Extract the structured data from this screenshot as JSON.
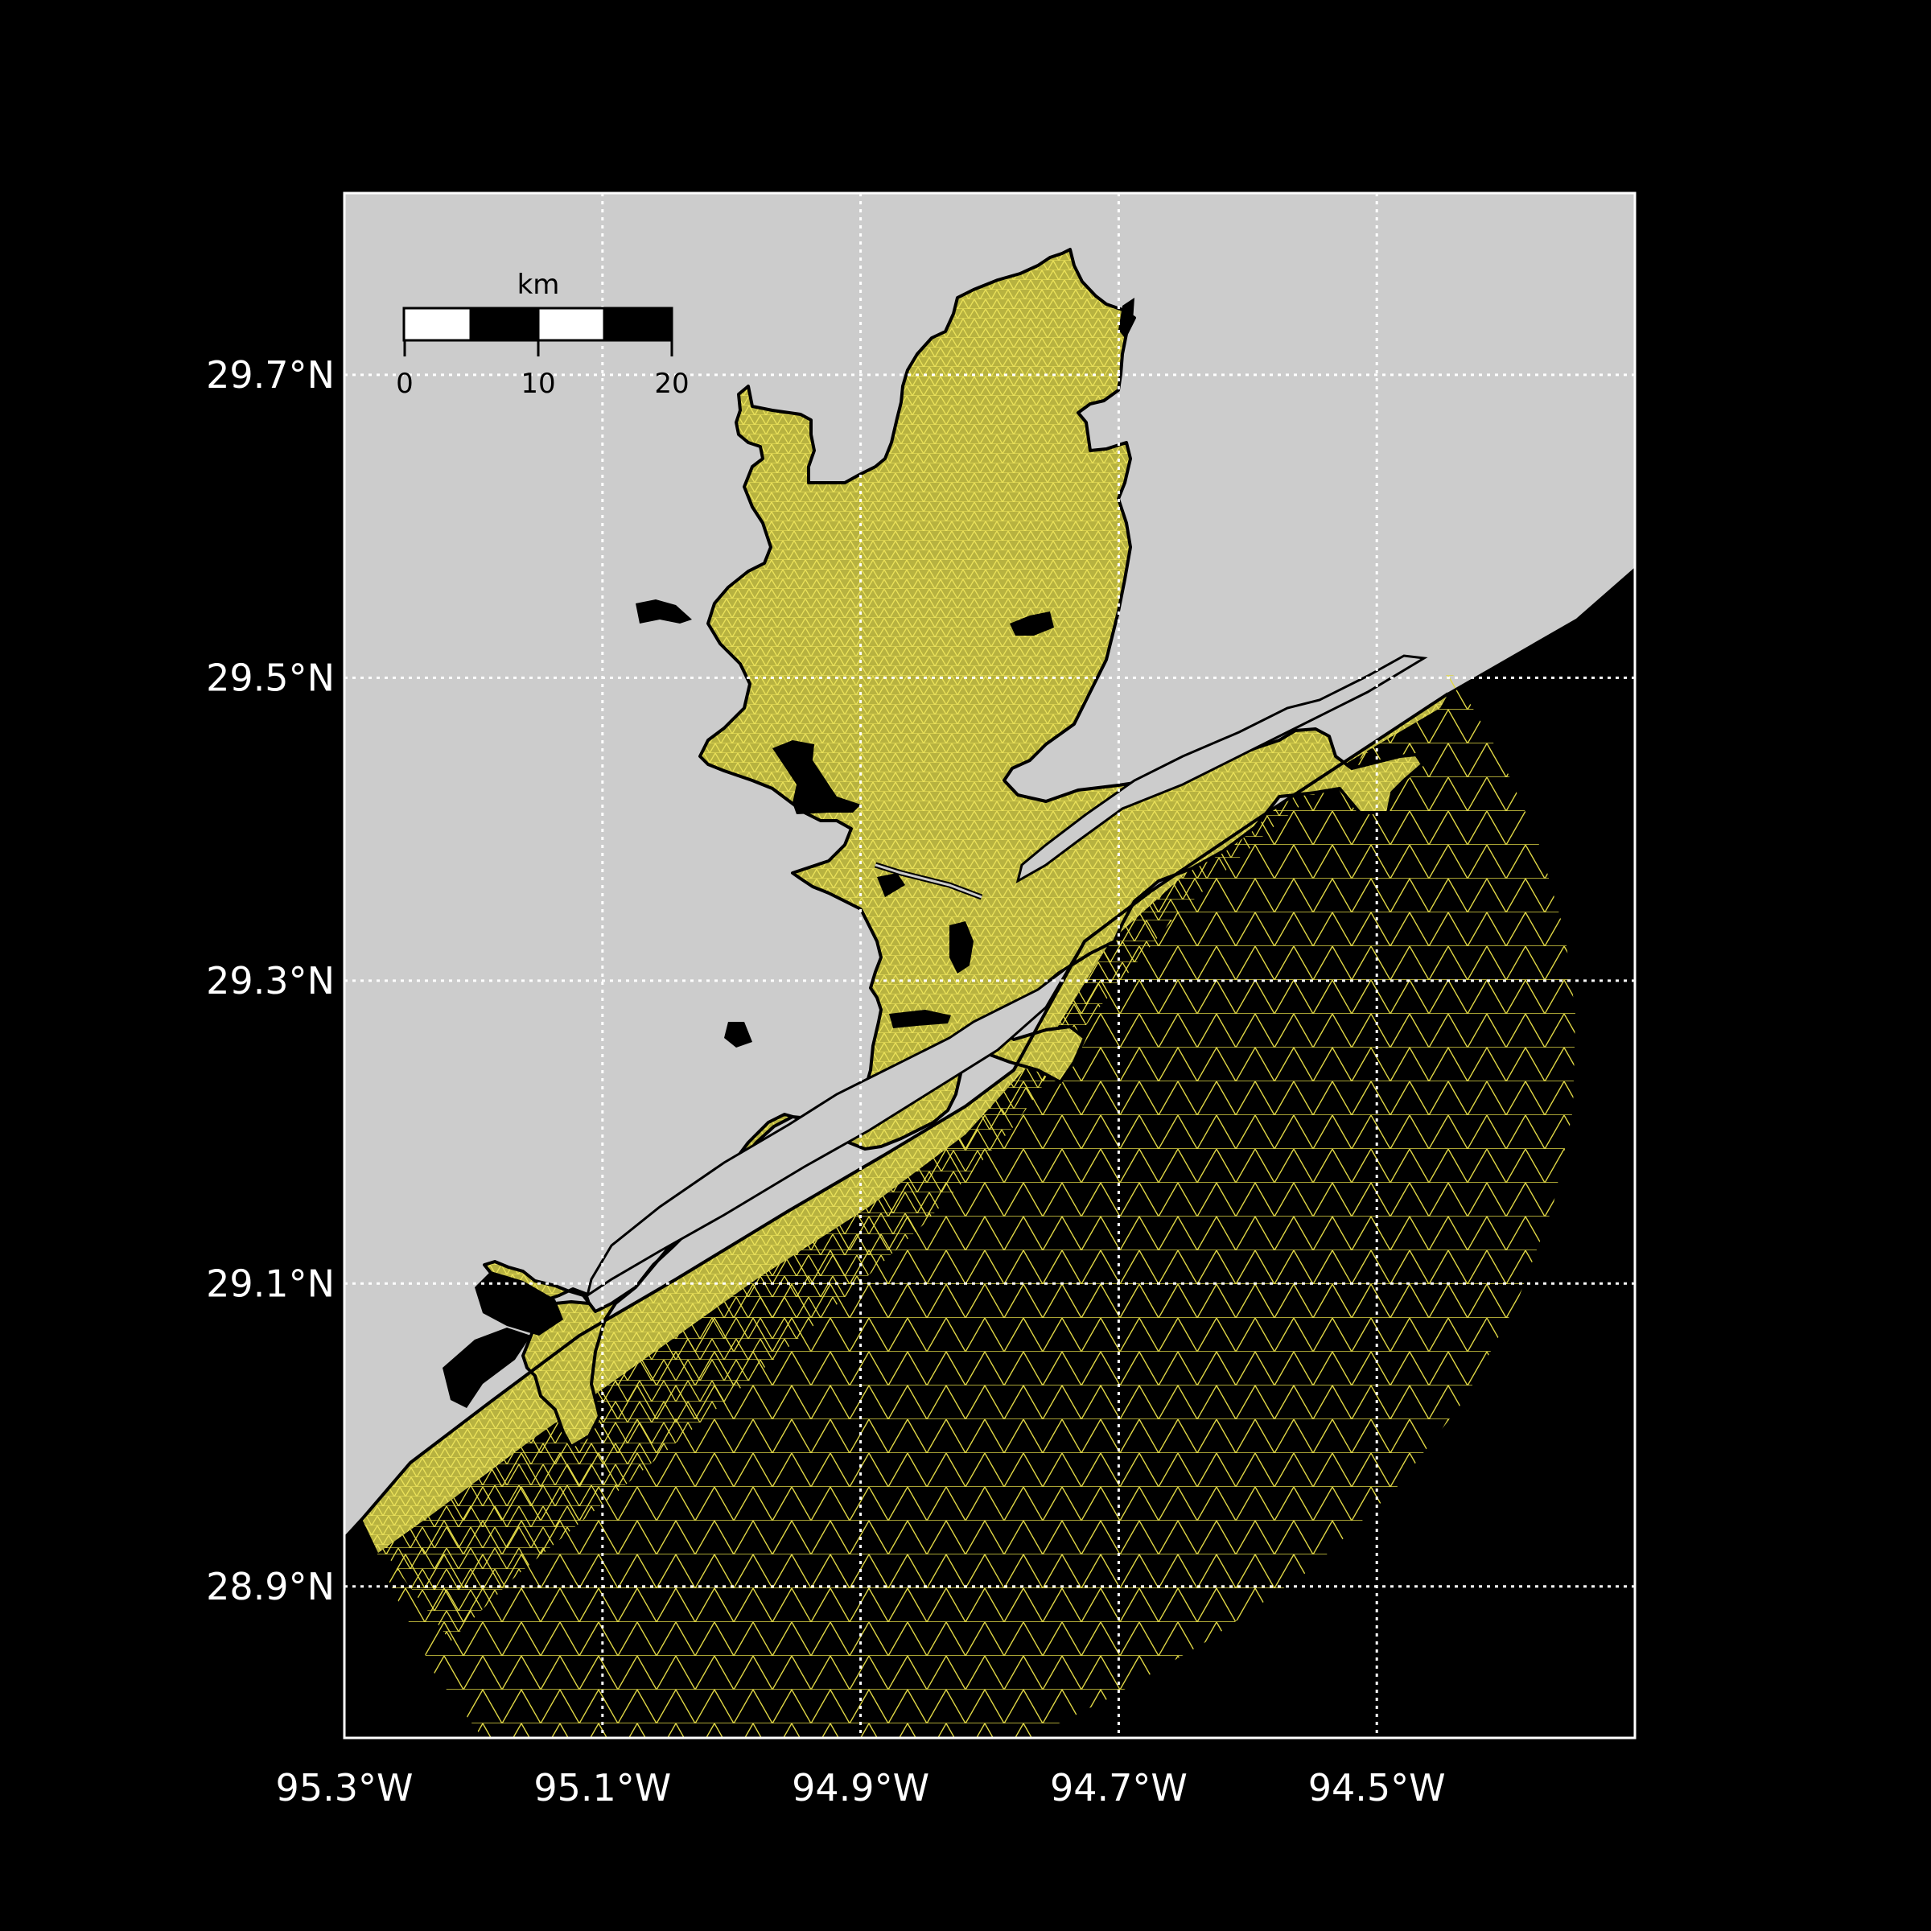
{
  "map": {
    "lon_range": [
      -95.3,
      -94.3
    ],
    "lat_range": [
      28.8,
      29.82
    ],
    "latitude_ticks": [
      {
        "value": 29.7,
        "label": "29.7°N"
      },
      {
        "value": 29.5,
        "label": "29.5°N"
      },
      {
        "value": 29.3,
        "label": "29.3°N"
      },
      {
        "value": 29.1,
        "label": "29.1°N"
      },
      {
        "value": 28.9,
        "label": "28.9°N"
      }
    ],
    "longitude_ticks": [
      {
        "value": -95.3,
        "label": "95.3°W"
      },
      {
        "value": -95.1,
        "label": "95.1°W"
      },
      {
        "value": -94.9,
        "label": "94.9°W"
      },
      {
        "value": -94.7,
        "label": "94.7°W"
      },
      {
        "value": -94.5,
        "label": "94.5°W"
      }
    ],
    "scale_bar": {
      "unit_label": "km",
      "tick_labels": [
        "0",
        "10",
        "20"
      ]
    },
    "colors": {
      "land": "#cccccc",
      "water_mesh_fill": "#b7b240",
      "mesh_lines": "#e8e04a",
      "ocean_outside": "#000000",
      "gridlines": "#ffffff"
    },
    "gridlines": "dotted",
    "layers": [
      "land",
      "unstructured-triangular-mesh",
      "coastline",
      "islands"
    ]
  }
}
